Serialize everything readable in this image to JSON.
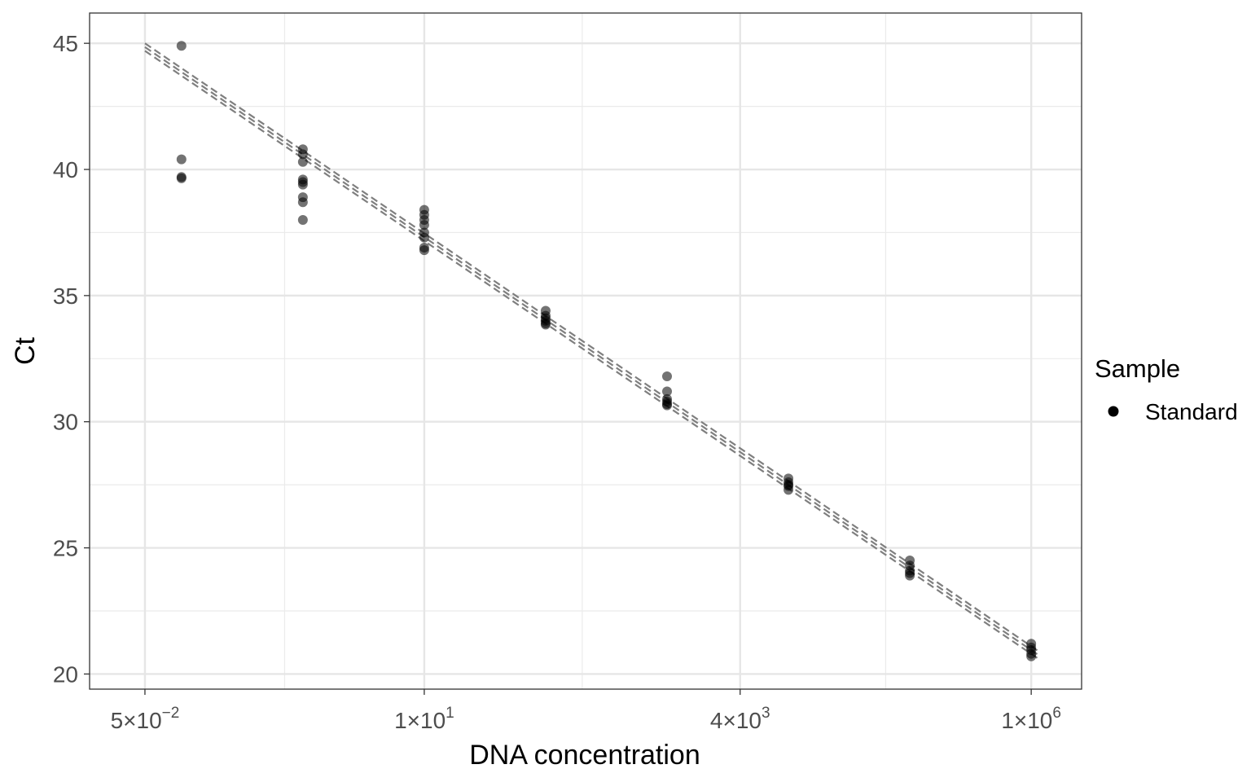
{
  "chart_data": {
    "type": "scatter",
    "xlabel": "DNA concentration",
    "ylabel": "Ct",
    "x_scale": "log10",
    "xlim": [
      0.0175,
      2600000
    ],
    "ylim": [
      19.4,
      46.2
    ],
    "grid": true,
    "y_ticks": [
      20,
      25,
      30,
      35,
      40,
      45
    ],
    "y_tick_labels": [
      "20",
      "25",
      "30",
      "35",
      "40",
      "45"
    ],
    "x_ticks": [
      {
        "value": 0.05,
        "mantissa": "5",
        "exponent": "−2"
      },
      {
        "value": 10,
        "mantissa": "1",
        "exponent": "1"
      },
      {
        "value": 4000,
        "mantissa": "4",
        "exponent": "3"
      },
      {
        "value": 1000000,
        "mantissa": "1",
        "exponent": "6"
      }
    ],
    "times_symbol": "×",
    "exponent_base": "10",
    "legend": {
      "title": "Sample",
      "position": "right",
      "entries": [
        {
          "label": "Standard",
          "color": "#000000"
        }
      ]
    },
    "point_color": "#000000",
    "point_opacity": 0.55,
    "fit_line_color": "#7f7f7f",
    "fit_lines": [
      {
        "x": [
          0.05,
          1150000
        ],
        "y": [
          45.0,
          20.9
        ]
      },
      {
        "x": [
          0.05,
          1150000
        ],
        "y": [
          44.85,
          20.75
        ]
      },
      {
        "x": [
          0.05,
          1150000
        ],
        "y": [
          44.7,
          20.6
        ]
      }
    ],
    "series": [
      {
        "name": "Standard",
        "points": [
          {
            "x": 0.1,
            "y": 44.9
          },
          {
            "x": 0.1,
            "y": 40.4
          },
          {
            "x": 0.1,
            "y": 39.7
          },
          {
            "x": 0.1,
            "y": 39.65
          },
          {
            "x": 1,
            "y": 40.8
          },
          {
            "x": 1,
            "y": 40.6
          },
          {
            "x": 1,
            "y": 40.3
          },
          {
            "x": 1,
            "y": 39.6
          },
          {
            "x": 1,
            "y": 39.5
          },
          {
            "x": 1,
            "y": 39.4
          },
          {
            "x": 1,
            "y": 38.9
          },
          {
            "x": 1,
            "y": 38.7
          },
          {
            "x": 1,
            "y": 38.0
          },
          {
            "x": 10,
            "y": 38.4
          },
          {
            "x": 10,
            "y": 38.2
          },
          {
            "x": 10,
            "y": 38.0
          },
          {
            "x": 10,
            "y": 37.8
          },
          {
            "x": 10,
            "y": 37.5
          },
          {
            "x": 10,
            "y": 37.3
          },
          {
            "x": 10,
            "y": 36.9
          },
          {
            "x": 10,
            "y": 36.8
          },
          {
            "x": 100,
            "y": 34.4
          },
          {
            "x": 100,
            "y": 34.2
          },
          {
            "x": 100,
            "y": 34.1
          },
          {
            "x": 100,
            "y": 34.0
          },
          {
            "x": 100,
            "y": 33.9
          },
          {
            "x": 100,
            "y": 33.85
          },
          {
            "x": 1000,
            "y": 31.8
          },
          {
            "x": 1000,
            "y": 31.2
          },
          {
            "x": 1000,
            "y": 30.9
          },
          {
            "x": 1000,
            "y": 30.8
          },
          {
            "x": 1000,
            "y": 30.7
          },
          {
            "x": 1000,
            "y": 30.65
          },
          {
            "x": 10000,
            "y": 27.75
          },
          {
            "x": 10000,
            "y": 27.6
          },
          {
            "x": 10000,
            "y": 27.5
          },
          {
            "x": 10000,
            "y": 27.45
          },
          {
            "x": 10000,
            "y": 27.3
          },
          {
            "x": 100000,
            "y": 24.5
          },
          {
            "x": 100000,
            "y": 24.3
          },
          {
            "x": 100000,
            "y": 24.1
          },
          {
            "x": 100000,
            "y": 24.0
          },
          {
            "x": 100000,
            "y": 23.9
          },
          {
            "x": 1000000,
            "y": 21.2
          },
          {
            "x": 1000000,
            "y": 21.05
          },
          {
            "x": 1000000,
            "y": 20.95
          },
          {
            "x": 1000000,
            "y": 20.8
          },
          {
            "x": 1000000,
            "y": 20.7
          }
        ]
      }
    ]
  }
}
